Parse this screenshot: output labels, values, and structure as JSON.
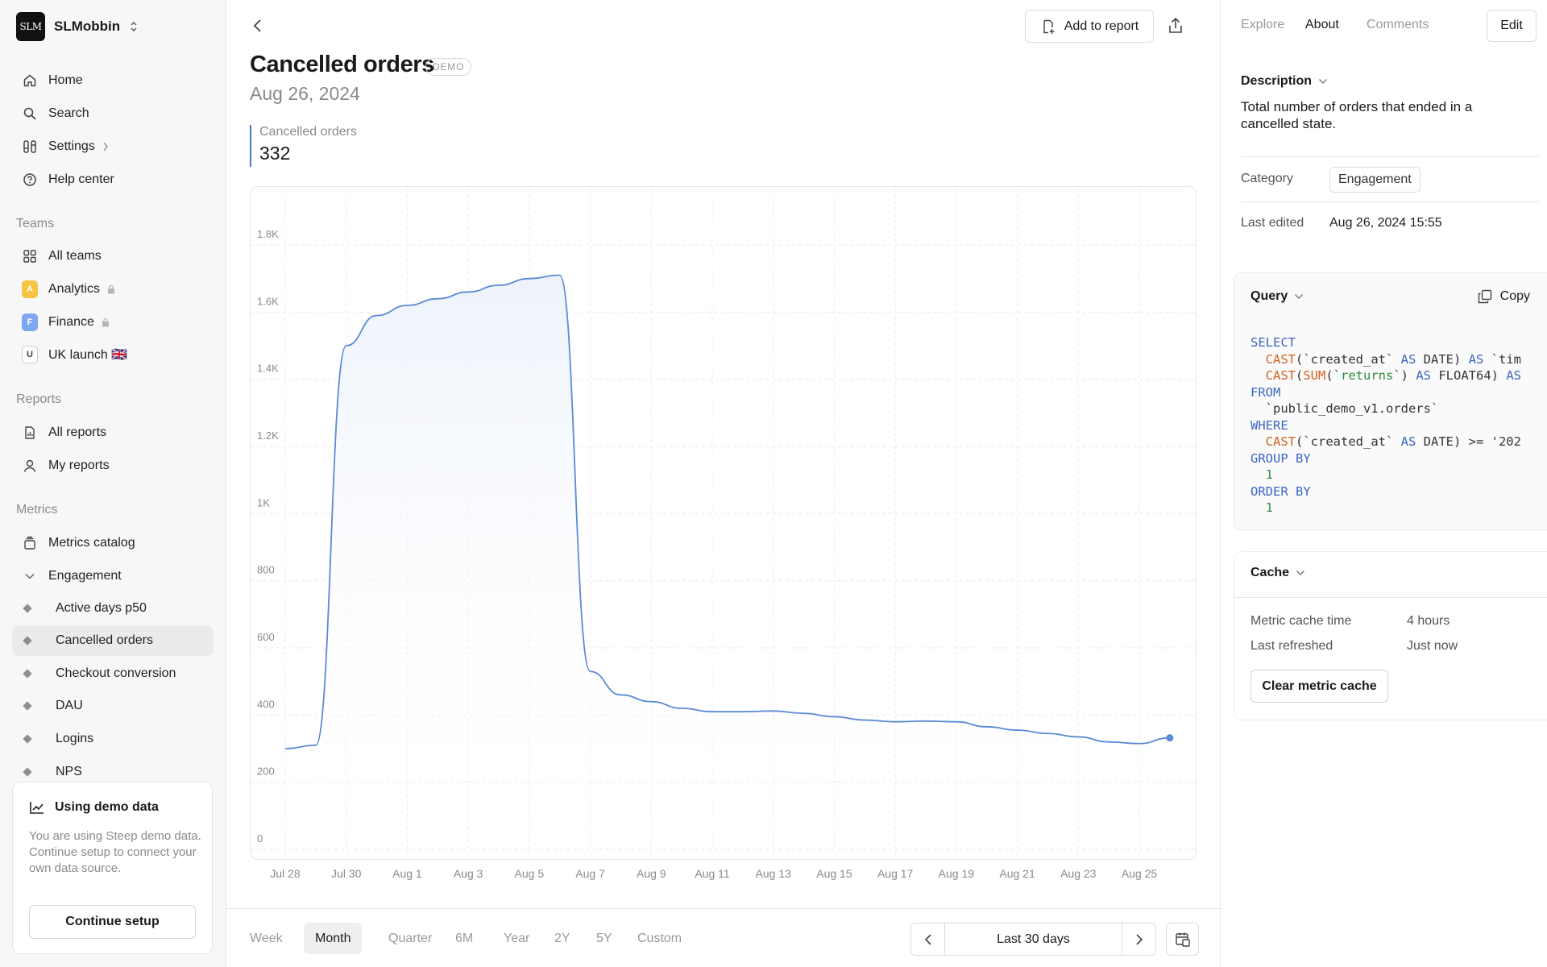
{
  "workspace": {
    "name": "SLMobbin",
    "logo_text": "SLM"
  },
  "nav": {
    "home": "Home",
    "search": "Search",
    "settings": "Settings",
    "help": "Help center"
  },
  "teams": {
    "label": "Teams",
    "all": "All teams",
    "items": [
      {
        "badge": "A",
        "name": "Analytics",
        "badge_bg": "#f6c443",
        "locked": true
      },
      {
        "badge": "F",
        "name": "Finance",
        "badge_bg": "#7fa7f0",
        "locked": true
      },
      {
        "badge": "U",
        "name": "UK launch 🇬🇧",
        "badge_bg": "#ffffff",
        "locked": false
      }
    ]
  },
  "reports": {
    "label": "Reports",
    "all": "All reports",
    "mine": "My reports"
  },
  "metrics": {
    "label": "Metrics",
    "catalog": "Metrics catalog",
    "group": "Engagement",
    "items": [
      "Active days p50",
      "Cancelled orders",
      "Checkout conversion",
      "DAU",
      "Logins",
      "NPS"
    ],
    "active_index": 1
  },
  "demo_card": {
    "title": "Using demo data",
    "text": "You are using Steep demo data. Continue setup to connect your own data source.",
    "button": "Continue setup"
  },
  "header": {
    "add_to_report": "Add to report"
  },
  "metric": {
    "title": "Cancelled orders",
    "badge": "DEMO",
    "date": "Aug 26, 2024",
    "kpi_label": "Cancelled orders",
    "kpi_value": "332"
  },
  "chart_data": {
    "type": "area",
    "x": [
      "Jul 28",
      "Jul 29",
      "Jul 30",
      "Jul 31",
      "Aug 1",
      "Aug 2",
      "Aug 3",
      "Aug 4",
      "Aug 5",
      "Aug 6",
      "Aug 7",
      "Aug 8",
      "Aug 9",
      "Aug 10",
      "Aug 11",
      "Aug 12",
      "Aug 13",
      "Aug 14",
      "Aug 15",
      "Aug 16",
      "Aug 17",
      "Aug 18",
      "Aug 19",
      "Aug 20",
      "Aug 21",
      "Aug 22",
      "Aug 23",
      "Aug 24",
      "Aug 25",
      "Aug 26"
    ],
    "values": [
      300,
      310,
      1500,
      1590,
      1620,
      1640,
      1660,
      1680,
      1700,
      1710,
      530,
      460,
      440,
      420,
      410,
      410,
      412,
      405,
      395,
      385,
      380,
      382,
      380,
      365,
      355,
      345,
      335,
      320,
      315,
      332
    ],
    "x_ticks": [
      "Jul 28",
      "Jul 30",
      "Aug 1",
      "Aug 3",
      "Aug 5",
      "Aug 7",
      "Aug 9",
      "Aug 11",
      "Aug 13",
      "Aug 15",
      "Aug 17",
      "Aug 19",
      "Aug 21",
      "Aug 23",
      "Aug 25"
    ],
    "y_ticks": [
      "0",
      "200",
      "400",
      "600",
      "800",
      "1K",
      "1.2K",
      "1.4K",
      "1.6K",
      "1.8K"
    ],
    "ylim": [
      0,
      1800
    ],
    "grid": true,
    "line_color": "#5b8ad6",
    "fill_color": "#eef3fb"
  },
  "ranges": {
    "options": [
      "Week",
      "Month",
      "Quarter",
      "6M",
      "Year",
      "2Y",
      "5Y",
      "Custom"
    ],
    "selected": "Month",
    "period": "Last 30 days"
  },
  "panel": {
    "tabs": [
      "Explore",
      "About",
      "Comments"
    ],
    "selected_tab": "About",
    "edit": "Edit",
    "description_head": "Description",
    "description": "Total number of orders that ended in a cancelled state.",
    "category_label": "Category",
    "category_value": "Engagement",
    "last_edited_label": "Last edited",
    "last_edited_value": "Aug 26, 2024 15:55",
    "query_head": "Query",
    "copy": "Copy",
    "cache_head": "Cache",
    "cache_time_label": "Metric cache time",
    "cache_time_value": "4 hours",
    "refreshed_label": "Last refreshed",
    "refreshed_value": "Just now",
    "clear_cache": "Clear metric cache"
  },
  "query_lines": [
    [
      [
        "kw",
        "SELECT"
      ]
    ],
    [
      [
        "pl",
        "  "
      ],
      [
        "fn",
        "CAST"
      ],
      [
        "pl",
        "(`created_at` "
      ],
      [
        "kw",
        "AS"
      ],
      [
        "pl",
        " DATE) "
      ],
      [
        "kw",
        "AS"
      ],
      [
        "pl",
        " `tim"
      ]
    ],
    [
      [
        "pl",
        "  "
      ],
      [
        "fn",
        "CAST"
      ],
      [
        "pl",
        "("
      ],
      [
        "fn",
        "SUM"
      ],
      [
        "pl",
        "(`"
      ],
      [
        "str",
        "returns"
      ],
      [
        "pl",
        "`) "
      ],
      [
        "kw",
        "AS"
      ],
      [
        "pl",
        " FLOAT64) "
      ],
      [
        "kw",
        "AS"
      ]
    ],
    [
      [
        "kw",
        "FROM"
      ]
    ],
    [
      [
        "pl",
        "  `public_demo_v1.orders`"
      ]
    ],
    [
      [
        "kw",
        "WHERE"
      ]
    ],
    [
      [
        "pl",
        "  "
      ],
      [
        "fn",
        "CAST"
      ],
      [
        "pl",
        "(`created_at` "
      ],
      [
        "kw",
        "AS"
      ],
      [
        "pl",
        " DATE) >= '202"
      ]
    ],
    [
      [
        "kw",
        "GROUP BY"
      ]
    ],
    [
      [
        "num",
        "  1"
      ]
    ],
    [
      [
        "kw",
        "ORDER BY"
      ]
    ],
    [
      [
        "num",
        "  1"
      ]
    ]
  ]
}
